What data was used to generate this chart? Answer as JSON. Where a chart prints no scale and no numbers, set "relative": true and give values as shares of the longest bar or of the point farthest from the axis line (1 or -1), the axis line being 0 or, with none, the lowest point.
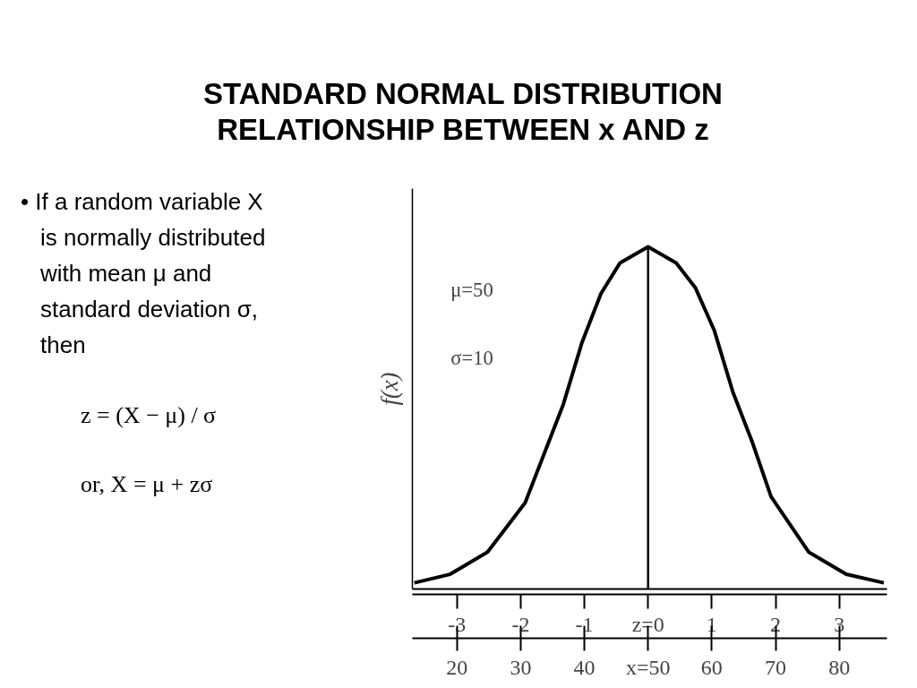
{
  "chart_data": {
    "type": "line",
    "title": "STANDARD NORMAL DISTRIBUTION\nRELATIONSHIP BETWEEN x AND z",
    "ylabel": "f(x)",
    "relative": true,
    "x": [
      -3.67,
      -3.11,
      -2.52,
      -1.93,
      -1.63,
      -1.33,
      -1.04,
      -0.74,
      -0.44,
      0,
      0.44,
      0.74,
      1.04,
      1.33,
      1.63,
      1.93,
      2.52,
      3.11,
      3.7
    ],
    "series": [
      {
        "color": "#000000",
        "values": [
          0.018,
          0.043,
          0.108,
          0.252,
          0.396,
          0.54,
          0.719,
          0.863,
          0.953,
          1,
          0.953,
          0.881,
          0.755,
          0.576,
          0.432,
          0.27,
          0.108,
          0.043,
          0.018
        ]
      }
    ],
    "xlim": [
      -3.7,
      3.75
    ],
    "xticks": [
      -3,
      -2,
      -1,
      {
        "value": 0,
        "label": "z=0"
      },
      1,
      2,
      3
    ],
    "x2lim": [
      13,
      87.5
    ],
    "x2ticks": [
      20,
      30,
      40,
      {
        "value": 50,
        "label": "x=50"
      },
      60,
      70,
      80
    ],
    "ref_lines": [
      {
        "axis": "x",
        "value": 0,
        "color": "#000000"
      }
    ],
    "annotations": [
      "μ=50",
      "σ=10",
      "• If a random variable X is normally distributed with mean μ and standard deviation σ, then",
      "z = (X − μ) / σ",
      "or, X = μ + zσ"
    ],
    "grid": false,
    "marker": "none",
    "line_style": "solid"
  }
}
